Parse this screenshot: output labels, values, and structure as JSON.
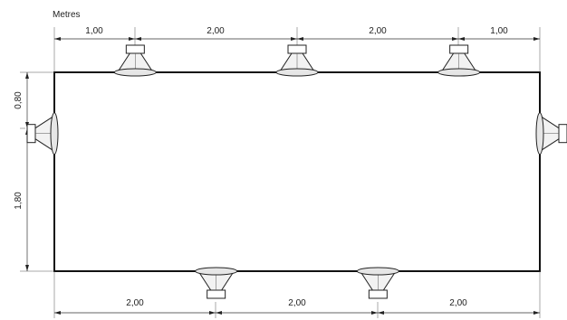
{
  "units_label": "Metres",
  "dimensions": {
    "top": [
      "1,00",
      "2,00",
      "2,00",
      "1,00"
    ],
    "bottom": [
      "2,00",
      "2,00",
      "2,00"
    ],
    "left": [
      "0,80",
      "1,80"
    ]
  },
  "speakers": {
    "top": [
      1,
      3,
      5
    ],
    "bottom": [
      2,
      4
    ],
    "left": [
      0.8
    ],
    "right": [
      0.8
    ]
  }
}
